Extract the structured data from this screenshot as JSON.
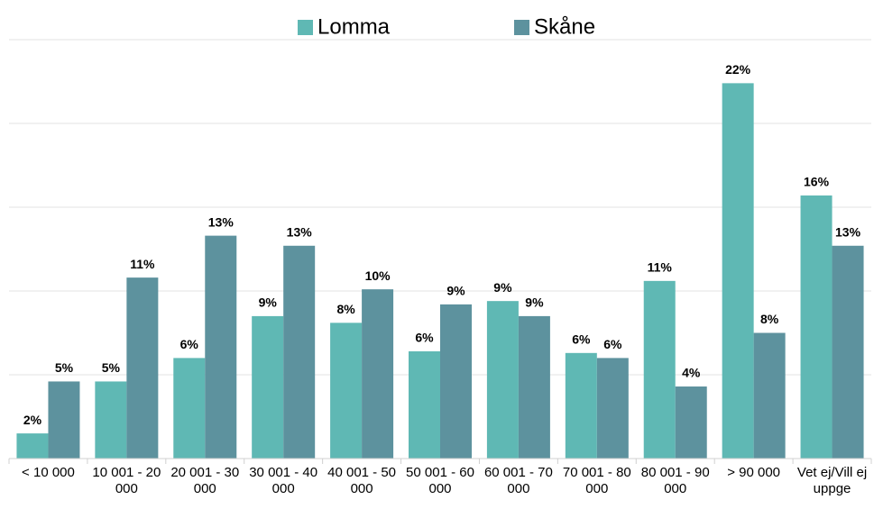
{
  "chart_data": {
    "type": "bar",
    "categories": [
      "< 10 000",
      "10 001 - 20 000",
      "20 001 - 30 000",
      "30 001 - 40 000",
      "40 001 - 50 000",
      "50 001 - 60 000",
      "60 001 - 70 000",
      "70 001 - 80 000",
      "80 001 - 90 000",
      "> 90 000",
      "Vet ej/Vill ej uppge"
    ],
    "series": [
      {
        "name": "Lomma",
        "color": "#5fb8b4",
        "values": [
          1.5,
          4.6,
          6.0,
          8.5,
          8.1,
          6.4,
          9.4,
          6.3,
          10.6,
          22.4,
          15.7
        ],
        "value_labels": [
          "2%",
          "5%",
          "6%",
          "9%",
          "8%",
          "6%",
          "9%",
          "6%",
          "11%",
          "22%",
          "16%"
        ]
      },
      {
        "name": "Skåne",
        "color": "#5d929e",
        "values": [
          4.6,
          10.8,
          13.3,
          12.7,
          10.1,
          9.2,
          8.5,
          6.0,
          4.3,
          7.5,
          12.7
        ],
        "value_labels": [
          "5%",
          "11%",
          "13%",
          "13%",
          "10%",
          "9%",
          "9%",
          "6%",
          "4%",
          "8%",
          "13%"
        ]
      }
    ],
    "ylim": [
      0,
      25
    ],
    "yticks": [
      0,
      5,
      10,
      15,
      20,
      25
    ],
    "grid": true,
    "legend": "top"
  }
}
